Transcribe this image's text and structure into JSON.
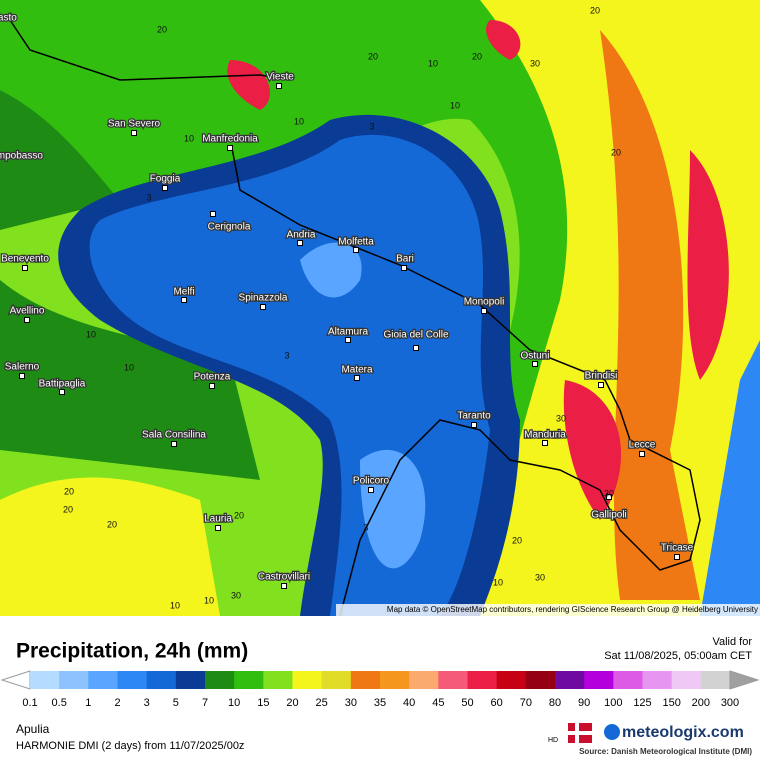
{
  "header": {
    "title": "Precipitation, 24h (mm)",
    "valid_label": "Valid for",
    "valid_time": "Sat 11/08/2025, 05:00am CET"
  },
  "map": {
    "attribution": "Map data © OpenStreetMap contributors, rendering GIScience Research Group @ Heidelberg University",
    "cities": [
      "Vasto",
      "Vieste",
      "San Severo",
      "Manfredonia",
      "Campobasso",
      "Foggia",
      "Cerignola",
      "Andria",
      "Molfetta",
      "Bari",
      "Benevento",
      "Melfi",
      "Spinazzola",
      "Monopoli",
      "Avellino",
      "Altamura",
      "Gioia del Colle",
      "Ostuni",
      "Salerno",
      "Battipaglia",
      "Matera",
      "Potenza",
      "Brindisi",
      "Taranto",
      "Manduria",
      "Sala Consilina",
      "Lecce",
      "Policoro",
      "Lauria",
      "Gallipoli",
      "Tricase",
      "Castrovillari"
    ],
    "contour_labels": [
      "20",
      "20",
      "10",
      "20",
      "30",
      "20",
      "10",
      "10",
      "3",
      "10",
      "20",
      "3",
      "10",
      "10",
      "3",
      "20",
      "20",
      "20",
      "20",
      "30",
      "30",
      "20",
      "10",
      "30",
      "30",
      "10",
      "10",
      "3"
    ]
  },
  "legend": {
    "values": [
      0.1,
      0.5,
      1,
      2,
      3,
      5,
      7,
      10,
      15,
      20,
      25,
      30,
      35,
      40,
      45,
      50,
      60,
      70,
      80,
      90,
      100,
      125,
      150,
      200,
      300
    ],
    "colors": [
      "#ffffff",
      "#b4dcff",
      "#8cc3ff",
      "#5aa5ff",
      "#2d87f5",
      "#1469d7",
      "#0a3c96",
      "#1e8c14",
      "#32be0f",
      "#82e11e",
      "#f5f51e",
      "#e1dc28",
      "#f07814",
      "#f5961e",
      "#faaa6e",
      "#f55a78",
      "#eb1e46",
      "#c80014",
      "#960014",
      "#6e0aa0",
      "#b400dc",
      "#dc5ae6",
      "#e696f0",
      "#f0c8f5",
      "#d2d2d2",
      "#a0a0a0"
    ]
  },
  "footer": {
    "region": "Apulia",
    "model": "HARMONIE DMI (2 days) from 11/07/2025/00z",
    "hd": "HD",
    "brand": "meteologix.com",
    "source": "Source: Danish Meteorological Institute (DMI)"
  }
}
